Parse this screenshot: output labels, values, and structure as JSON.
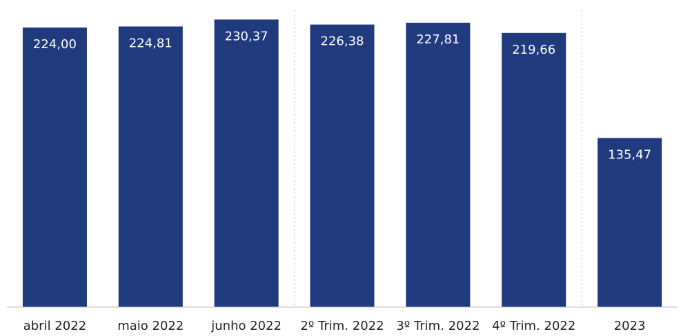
{
  "chart_data": {
    "type": "bar",
    "categories": [
      "abril 2022",
      "maio 2022",
      "junho 2022",
      "2º Trim. 2022",
      "3º Trim. 2022",
      "4º Trim. 2022",
      "2023"
    ],
    "values": [
      224.0,
      224.81,
      230.37,
      226.38,
      227.81,
      219.66,
      135.47
    ],
    "value_labels": [
      "224,00",
      "224,81",
      "230,37",
      "226,38",
      "227,81",
      "219,66",
      "135,47"
    ],
    "title": "",
    "xlabel": "",
    "ylabel": "",
    "ylim": [
      0,
      235
    ],
    "grid": false,
    "legend": "none",
    "group_separators_after_category": [
      "junho 2022",
      "4º Trim. 2022"
    ],
    "colors": {
      "bar": "#213a7e",
      "value_label": "#ffffff",
      "category_label": "#222222"
    }
  }
}
